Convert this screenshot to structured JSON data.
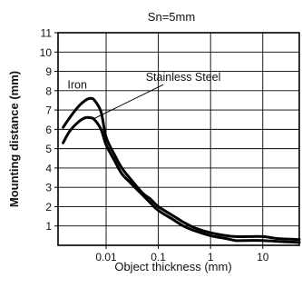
{
  "chart_data": {
    "type": "line",
    "title": "Sn=5mm",
    "xlabel": "Object thickness  (mm)",
    "ylabel": "Mounting distance (mm)",
    "x_scale": "log",
    "xlim": [
      0.0012,
      50
    ],
    "ylim": [
      0,
      11
    ],
    "grid": true,
    "x_ticks": [
      0.01,
      0.1,
      1,
      10
    ],
    "x_tick_labels": [
      "0.01",
      "0.1",
      "1",
      "10"
    ],
    "y_ticks": [
      1,
      2,
      3,
      4,
      5,
      6,
      7,
      8,
      9,
      10,
      11
    ],
    "y_tick_labels": [
      "1",
      "2",
      "3",
      "4",
      "5",
      "6",
      "7",
      "8",
      "9",
      "10",
      "11"
    ],
    "series": [
      {
        "name": "Iron",
        "x": [
          0.0015,
          0.002,
          0.003,
          0.004,
          0.005,
          0.006,
          0.008,
          0.01,
          0.015,
          0.02,
          0.03,
          0.05,
          0.07,
          0.1,
          0.2,
          0.3,
          0.5,
          1,
          2,
          3,
          5,
          10,
          20,
          50
        ],
        "y": [
          6.1,
          6.6,
          7.2,
          7.5,
          7.6,
          7.5,
          6.9,
          5.6,
          4.6,
          4.0,
          3.4,
          2.7,
          2.4,
          2.0,
          1.5,
          1.2,
          0.9,
          0.65,
          0.5,
          0.45,
          0.45,
          0.45,
          0.35,
          0.3
        ]
      },
      {
        "name": "Stainless Steel",
        "x": [
          0.0015,
          0.002,
          0.003,
          0.004,
          0.005,
          0.006,
          0.008,
          0.01,
          0.015,
          0.02,
          0.03,
          0.05,
          0.07,
          0.1,
          0.2,
          0.3,
          0.5,
          1,
          2,
          3,
          5,
          10,
          20,
          50
        ],
        "y": [
          5.3,
          5.9,
          6.4,
          6.6,
          6.6,
          6.5,
          6.0,
          5.2,
          4.3,
          3.7,
          3.2,
          2.6,
          2.2,
          1.8,
          1.3,
          1.0,
          0.75,
          0.5,
          0.35,
          0.25,
          0.25,
          0.25,
          0.2,
          0.15
        ]
      }
    ],
    "annotations": [
      {
        "text": "Iron",
        "x": 0.0028,
        "y": 8.1
      },
      {
        "text": "Stainless Steel",
        "x": 0.3,
        "y": 8.5,
        "arrow_to": {
          "x": 0.0058,
          "y": 6.55
        }
      }
    ]
  }
}
